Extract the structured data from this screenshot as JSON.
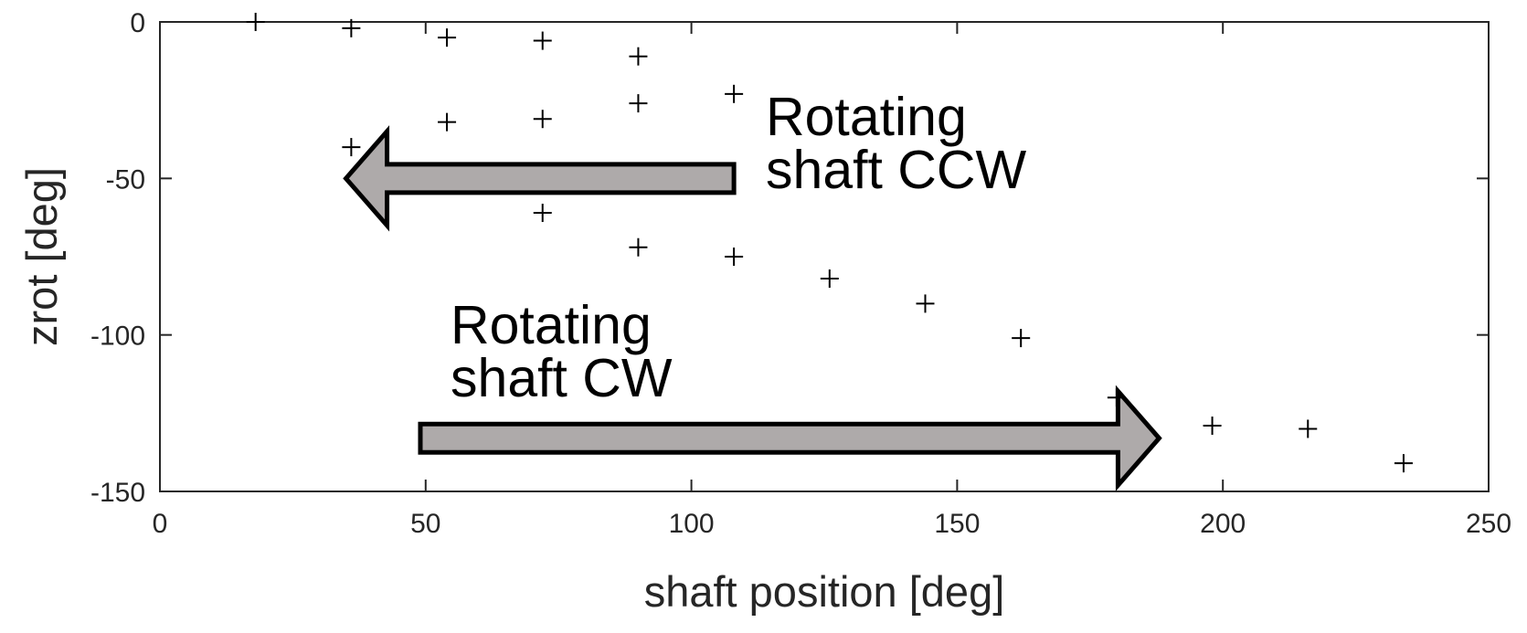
{
  "chart_data": {
    "type": "scatter",
    "title": "",
    "xlabel": "shaft position [deg]",
    "ylabel": "zrot [deg]",
    "xlim": [
      0,
      250
    ],
    "ylim": [
      -150,
      0
    ],
    "xticks": [
      0,
      50,
      100,
      150,
      200,
      250
    ],
    "yticks": [
      0,
      -50,
      -100,
      -150
    ],
    "marker": "+",
    "grid": false,
    "series": [
      {
        "points": [
          {
            "x": 18,
            "y": 0
          },
          {
            "x": 36,
            "y": -2
          },
          {
            "x": 54,
            "y": -5
          },
          {
            "x": 72,
            "y": -6
          },
          {
            "x": 90,
            "y": -11
          },
          {
            "x": 108,
            "y": -23
          },
          {
            "x": 90,
            "y": -26
          },
          {
            "x": 72,
            "y": -31
          },
          {
            "x": 54,
            "y": -32
          },
          {
            "x": 36,
            "y": -40
          },
          {
            "x": 72,
            "y": -61
          },
          {
            "x": 90,
            "y": -72
          },
          {
            "x": 108,
            "y": -75
          },
          {
            "x": 126,
            "y": -82
          },
          {
            "x": 144,
            "y": -90
          },
          {
            "x": 162,
            "y": -101
          },
          {
            "x": 180,
            "y": -120
          },
          {
            "x": 198,
            "y": -129
          },
          {
            "x": 216,
            "y": -130
          },
          {
            "x": 234,
            "y": -141
          }
        ]
      }
    ],
    "annotations": [
      {
        "lines": [
          "Rotating",
          "shaft CCW"
        ],
        "arrow_direction": "left",
        "arrow_from": {
          "x": 108,
          "y": -50
        },
        "arrow_to": {
          "x": 35,
          "y": -50
        }
      },
      {
        "lines": [
          "Rotating",
          "shaft CW"
        ],
        "arrow_direction": "right",
        "arrow_from": {
          "x": 49,
          "y": -133
        },
        "arrow_to": {
          "x": 188,
          "y": -133
        }
      }
    ],
    "colors": {
      "arrow_fill": "#aeaaaa",
      "arrow_stroke": "#000000",
      "axis": "#262626",
      "marker": "#000000"
    }
  }
}
